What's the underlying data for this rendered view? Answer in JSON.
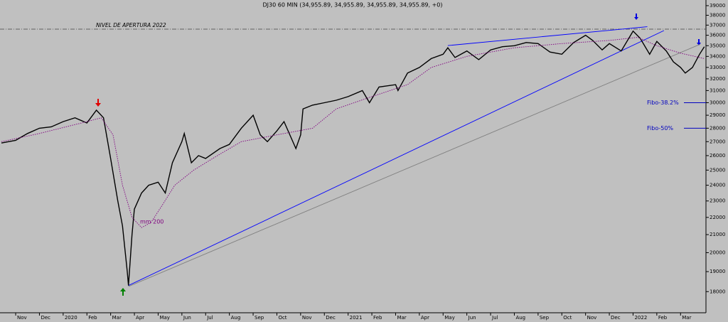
{
  "chart_data": {
    "type": "line",
    "title": "DJ30 60 MIN (34,955.89, 34,955.89, 34,955.89, 34,955.89, +0)",
    "log_scale": true,
    "xlim": [
      -0.66,
      29.07
    ],
    "ylim": [
      17000,
      39600
    ],
    "yticks": [
      18000,
      19000,
      20000,
      21000,
      22000,
      23000,
      24000,
      25000,
      26000,
      27000,
      28000,
      29000,
      30000,
      31000,
      32000,
      33000,
      34000,
      35000,
      36000,
      37000,
      38000,
      39000
    ],
    "xticks": [
      {
        "value": 0,
        "label": "Nov"
      },
      {
        "value": 1,
        "label": "Dec"
      },
      {
        "value": 2,
        "label": "2020"
      },
      {
        "value": 3,
        "label": "Feb"
      },
      {
        "value": 4,
        "label": "Mar"
      },
      {
        "value": 5,
        "label": "Apr"
      },
      {
        "value": 6,
        "label": "May"
      },
      {
        "value": 7,
        "label": "Jun"
      },
      {
        "value": 8,
        "label": "Jul"
      },
      {
        "value": 9,
        "label": "Aug"
      },
      {
        "value": 10,
        "label": "Sep"
      },
      {
        "value": 11,
        "label": "Oct"
      },
      {
        "value": 12,
        "label": "Nov"
      },
      {
        "value": 13,
        "label": "Dec"
      },
      {
        "value": 14,
        "label": "2021"
      },
      {
        "value": 15,
        "label": "Feb"
      },
      {
        "value": 16,
        "label": "Mar"
      },
      {
        "value": 17,
        "label": "Apr"
      },
      {
        "value": 18,
        "label": "May"
      },
      {
        "value": 19,
        "label": "Jun"
      },
      {
        "value": 20,
        "label": "Jul"
      },
      {
        "value": 21,
        "label": "Aug"
      },
      {
        "value": 22,
        "label": "Sep"
      },
      {
        "value": 23,
        "label": "Oct"
      },
      {
        "value": 24,
        "label": "Nov"
      },
      {
        "value": 25,
        "label": "Dec"
      },
      {
        "value": 26,
        "label": "2022"
      },
      {
        "value": 27,
        "label": "Feb"
      },
      {
        "value": 28,
        "label": "Mar"
      }
    ],
    "series": [
      {
        "color": "#000000",
        "x": [
          -0.6,
          0,
          0.5,
          1,
          1.5,
          2,
          2.5,
          3,
          3.4,
          3.7,
          4,
          4.3,
          4.5,
          4.7,
          4.75,
          4.9,
          5,
          5.3,
          5.6,
          6,
          6.3,
          6.6,
          7,
          7.1,
          7.4,
          7.7,
          8,
          8.6,
          9,
          9.5,
          10,
          10.3,
          10.6,
          11,
          11.3,
          11.8,
          12,
          12.1,
          12.5,
          13,
          13.5,
          14,
          14.6,
          14.9,
          15.3,
          16,
          16.1,
          16.5,
          17,
          17.5,
          18,
          18.2,
          18.5,
          19,
          19.5,
          20,
          20.5,
          21,
          21.5,
          22,
          22.5,
          23,
          23.5,
          24,
          24.3,
          24.7,
          25,
          25.5,
          26,
          26.3,
          26.7,
          27,
          27.4,
          27.7,
          28,
          28.2,
          28.5,
          28.8,
          29
        ],
        "values": [
          26900,
          27100,
          27600,
          28000,
          28100,
          28500,
          28800,
          28400,
          29400,
          28800,
          25800,
          23000,
          21500,
          19000,
          18300,
          21000,
          22500,
          23500,
          24000,
          24200,
          23500,
          25500,
          27000,
          27600,
          25500,
          26000,
          25800,
          26500,
          26800,
          28000,
          29000,
          27500,
          27000,
          27800,
          28500,
          26500,
          27500,
          29500,
          29800,
          30000,
          30200,
          30500,
          31000,
          30000,
          31300,
          31500,
          31000,
          32500,
          33000,
          33800,
          34200,
          34800,
          33900,
          34500,
          33700,
          34600,
          34900,
          35000,
          35300,
          35200,
          34400,
          34200,
          35300,
          36000,
          35500,
          34600,
          35200,
          34500,
          36400,
          35700,
          34200,
          35400,
          34500,
          33500,
          33000,
          32500,
          33000,
          34200,
          34900
        ]
      },
      {
        "name": "mm 200",
        "color": "#800080",
        "x": [
          -0.6,
          1,
          3,
          3.6,
          4.1,
          4.5,
          4.9,
          5.3,
          5.7,
          6.2,
          6.7,
          7.5,
          8.5,
          9.5,
          11,
          12.5,
          13.5,
          15,
          16.5,
          17.5,
          19,
          21,
          23,
          25,
          26.2,
          27,
          28,
          29
        ],
        "values": [
          27000,
          27600,
          28500,
          28800,
          27500,
          24000,
          22000,
          21400,
          21700,
          22800,
          24000,
          25000,
          26000,
          27000,
          27500,
          28000,
          29500,
          30500,
          31500,
          33000,
          34000,
          34800,
          35200,
          35500,
          35800,
          35000,
          34300,
          33800
        ]
      }
    ],
    "trendlines": [
      {
        "color": "#0000ff",
        "x": [
          4.75,
          27.3
        ],
        "y": [
          18300,
          36460
        ]
      },
      {
        "color": "#0000ff",
        "x": [
          18.2,
          26.6
        ],
        "y": [
          35010,
          36840
        ]
      },
      {
        "color": "#808080",
        "x": [
          4.75,
          28.83
        ],
        "y": [
          18250,
          35140
        ]
      }
    ],
    "levels": [
      {
        "text": "NIVEL DE APERTURA 2022",
        "value": 36600
      },
      {
        "text": "Fibo-38.2%",
        "value": 30000
      },
      {
        "text": "Fibo-50%",
        "value": 28000
      }
    ]
  }
}
